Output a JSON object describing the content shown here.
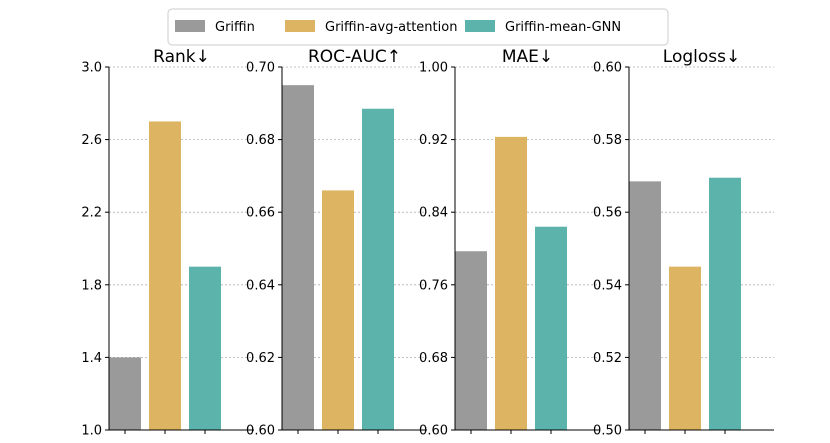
{
  "chart_data": {
    "type": "bar",
    "legend": {
      "placement": "top-center",
      "entries": [
        {
          "name": "Griffin",
          "color": "#9a9a9a"
        },
        {
          "name": "Griffin-avg-attention",
          "color": "#dcb462"
        },
        {
          "name": "Griffin-mean-GNN",
          "color": "#5cb3ab"
        }
      ]
    },
    "panels": [
      {
        "title": "Rank↓",
        "ylim": [
          1.0,
          3.0
        ],
        "yticks": [
          "1.0",
          "1.4",
          "1.8",
          "2.2",
          "2.6",
          "3.0"
        ],
        "grid": true,
        "series": [
          {
            "name": "Griffin",
            "value": 1.4
          },
          {
            "name": "Griffin-avg-attention",
            "value": 2.7
          },
          {
            "name": "Griffin-mean-GNN",
            "value": 1.9
          }
        ]
      },
      {
        "title": "ROC-AUC↑",
        "ylim": [
          0.6,
          0.7
        ],
        "yticks": [
          "0.60",
          "0.62",
          "0.64",
          "0.66",
          "0.68",
          "0.70"
        ],
        "grid": true,
        "series": [
          {
            "name": "Griffin",
            "value": 0.695
          },
          {
            "name": "Griffin-avg-attention",
            "value": 0.666
          },
          {
            "name": "Griffin-mean-GNN",
            "value": 0.6885
          }
        ]
      },
      {
        "title": "MAE↓",
        "ylim": [
          0.6,
          1.0
        ],
        "yticks": [
          "0.60",
          "0.68",
          "0.76",
          "0.84",
          "0.92",
          "1.00"
        ],
        "grid": true,
        "series": [
          {
            "name": "Griffin",
            "value": 0.797
          },
          {
            "name": "Griffin-avg-attention",
            "value": 0.923
          },
          {
            "name": "Griffin-mean-GNN",
            "value": 0.824
          }
        ]
      },
      {
        "title": "Logloss↓",
        "ylim": [
          0.5,
          0.6
        ],
        "yticks": [
          "0.50",
          "0.52",
          "0.54",
          "0.56",
          "0.58",
          "0.60"
        ],
        "grid": true,
        "series": [
          {
            "name": "Griffin",
            "value": 0.5685
          },
          {
            "name": "Griffin-avg-attention",
            "value": 0.545
          },
          {
            "name": "Griffin-mean-GNN",
            "value": 0.5695
          }
        ]
      }
    ]
  }
}
